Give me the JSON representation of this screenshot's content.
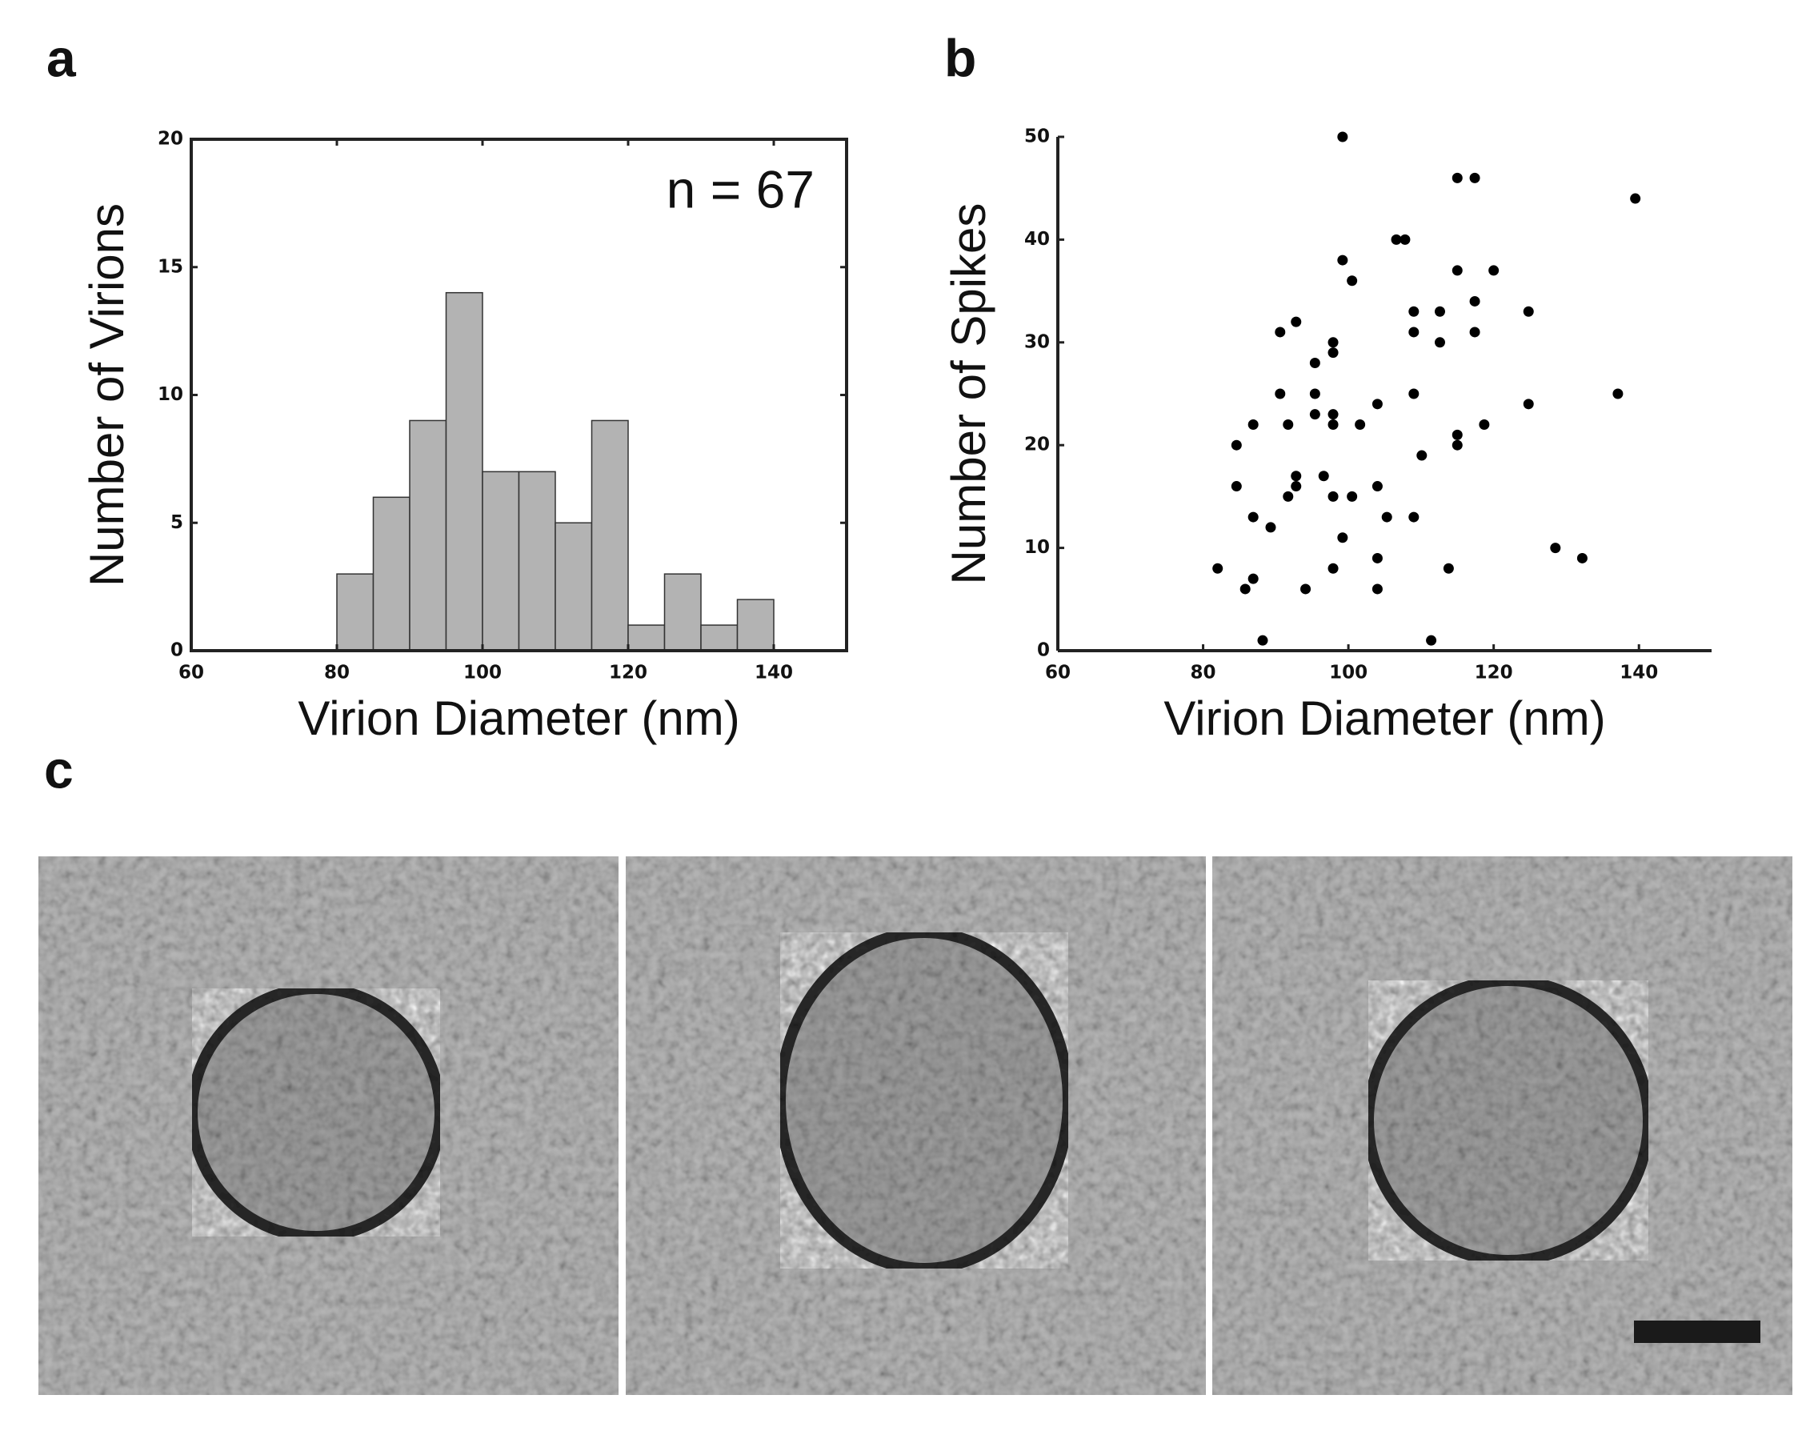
{
  "chart_data": [
    {
      "type": "histogram",
      "panel_label": "a",
      "xlabel": "Virion Diameter (nm)",
      "ylabel": "Number of Virions",
      "annotation": "n = 67",
      "bins": [
        80,
        85,
        90,
        95,
        100,
        105,
        110,
        115,
        120,
        125,
        130,
        135,
        140
      ],
      "values": [
        3,
        6,
        9,
        14,
        7,
        7,
        5,
        9,
        1,
        3,
        1,
        2
      ],
      "color": "#b3b3b3",
      "xlim": [
        60,
        150
      ],
      "ylim": [
        0,
        20
      ],
      "xticks": [
        60,
        80,
        100,
        120,
        140
      ],
      "yticks": [
        0,
        5,
        10,
        15,
        20
      ],
      "frame": "box"
    },
    {
      "type": "scatter",
      "panel_label": "b",
      "xlabel": "Virion Diameter (nm)",
      "ylabel": "Number of Spikes",
      "color": "#000000",
      "x": [
        82,
        84.6,
        84.6,
        85.8,
        86.9,
        86.9,
        86.9,
        88.2,
        89.3,
        90.6,
        90.6,
        91.7,
        91.7,
        92.8,
        92.8,
        92.8,
        94.1,
        95.4,
        95.4,
        95.4,
        96.6,
        97.9,
        97.9,
        97.9,
        97.9,
        97.9,
        97.9,
        99.2,
        99.2,
        99.2,
        100.5,
        100.5,
        101.6,
        104,
        104,
        104,
        104,
        105.3,
        106.6,
        107.8,
        109,
        109,
        109,
        109,
        110.1,
        111.4,
        112.6,
        112.6,
        113.8,
        115,
        115,
        115,
        115,
        117.4,
        117.4,
        117.4,
        118.7,
        120,
        124.8,
        124.8,
        128.5,
        132.2,
        137.1,
        139.5
      ],
      "values": [
        8,
        20,
        16,
        6,
        22,
        13,
        7,
        1,
        12,
        31,
        25,
        22,
        15,
        32,
        17,
        16,
        6,
        28,
        25,
        23,
        17,
        30,
        29,
        23,
        22,
        15,
        8,
        50,
        38,
        11,
        36,
        15,
        22,
        24,
        16,
        9,
        6,
        13,
        40,
        40,
        33,
        31,
        25,
        13,
        19,
        1,
        33,
        30,
        8,
        46,
        37,
        21,
        20,
        46,
        34,
        31,
        22,
        37,
        33,
        24,
        10,
        9,
        25,
        44
      ],
      "xlim": [
        60,
        150
      ],
      "ylim": [
        0,
        50
      ],
      "xticks": [
        60,
        80,
        100,
        120,
        140
      ],
      "yticks": [
        0,
        10,
        20,
        30,
        40,
        50
      ],
      "frame": "axes"
    }
  ],
  "panel_c": {
    "label": "c"
  }
}
